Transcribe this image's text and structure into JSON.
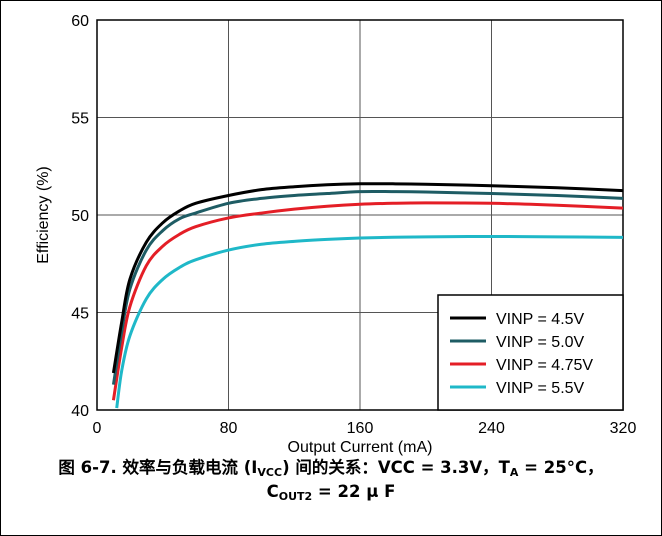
{
  "chart_data": {
    "type": "line",
    "xlabel": "Output Current (mA)",
    "ylabel": "Efficiency (%)",
    "xlim": [
      0,
      320
    ],
    "ylim": [
      40,
      60
    ],
    "x_ticks": [
      "0",
      "80",
      "160",
      "240",
      "320"
    ],
    "y_ticks": [
      "40",
      "45",
      "50",
      "55",
      "60"
    ],
    "grid": true,
    "legend_position": "bottom-right",
    "series": [
      {
        "name": "VINP = 4.5V",
        "color": "#000000",
        "x": [
          10,
          15,
          20,
          30,
          40,
          50,
          60,
          80,
          100,
          120,
          140,
          160,
          180,
          200,
          240,
          280,
          320
        ],
        "y": [
          41.9,
          44.5,
          46.7,
          48.6,
          49.6,
          50.2,
          50.6,
          51.0,
          51.3,
          51.45,
          51.55,
          51.6,
          51.6,
          51.58,
          51.5,
          51.4,
          51.25
        ]
      },
      {
        "name": "VINP = 5.0V",
        "color": "#1e5c64",
        "x": [
          10,
          15,
          20,
          30,
          40,
          50,
          60,
          80,
          100,
          120,
          140,
          160,
          180,
          200,
          240,
          280,
          320
        ],
        "y": [
          41.3,
          44.0,
          46.2,
          48.2,
          49.2,
          49.8,
          50.1,
          50.6,
          50.85,
          51.0,
          51.1,
          51.2,
          51.2,
          51.18,
          51.1,
          51.0,
          50.85
        ]
      },
      {
        "name": "VINP = 4.75V",
        "color": "#e41e26",
        "x": [
          10,
          15,
          20,
          30,
          40,
          50,
          60,
          80,
          100,
          120,
          140,
          160,
          180,
          200,
          240,
          280,
          320
        ],
        "y": [
          40.5,
          43.2,
          45.3,
          47.4,
          48.4,
          49.0,
          49.4,
          49.85,
          50.1,
          50.3,
          50.45,
          50.55,
          50.6,
          50.62,
          50.6,
          50.5,
          50.35
        ]
      },
      {
        "name": "VINP = 5.5V",
        "color": "#1fb8c8",
        "x": [
          12,
          15,
          20,
          30,
          40,
          50,
          60,
          80,
          100,
          120,
          140,
          160,
          180,
          200,
          240,
          280,
          320
        ],
        "y": [
          40.1,
          42.0,
          43.8,
          45.7,
          46.7,
          47.3,
          47.7,
          48.2,
          48.5,
          48.65,
          48.75,
          48.82,
          48.86,
          48.88,
          48.9,
          48.88,
          48.85
        ]
      }
    ]
  },
  "caption": {
    "line1_main": "图 6-7. 效率与负载电流 (I",
    "line1_sub": "VCC",
    "line1_mid": ") 间的关系：VCC = 3.3V，T",
    "line1_sub2": "A",
    "line1_end": " = 25°C，",
    "line2_main": "C",
    "line2_sub": "OUT2",
    "line2_end": " = 22 μ F"
  }
}
